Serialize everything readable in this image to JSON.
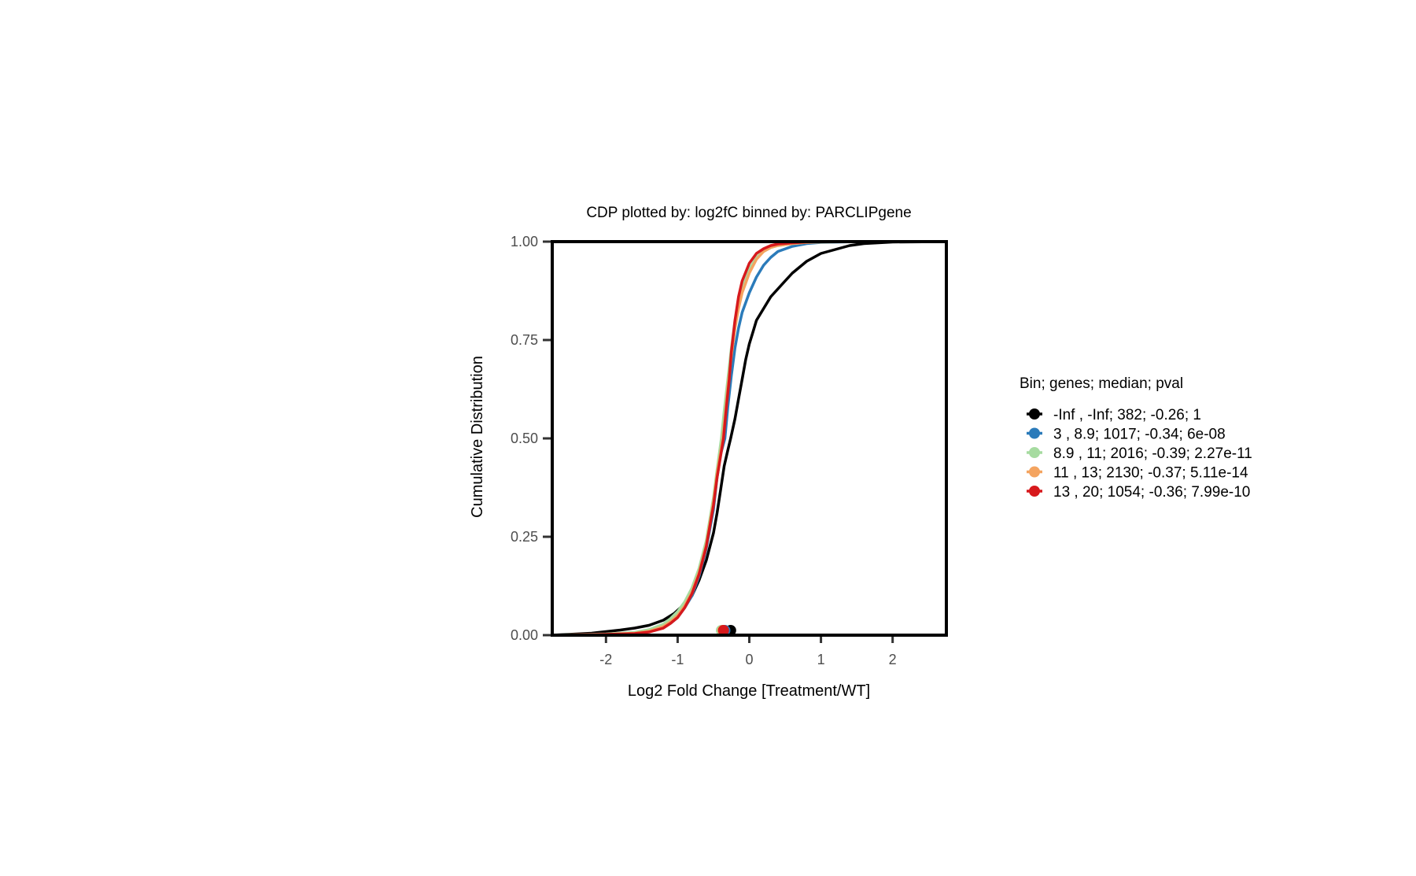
{
  "chart_data": {
    "type": "line",
    "title": "CDP plotted by: log2fC binned by: PARCLIPgene",
    "xlabel": "Log2 Fold Change [Treatment/WT]",
    "ylabel": "Cumulative Distribution",
    "xlim": [
      -2.75,
      2.75
    ],
    "ylim": [
      0,
      1
    ],
    "x_ticks": [
      "-2",
      "-1",
      "0",
      "1",
      "2"
    ],
    "x_tick_values": [
      -2,
      -1,
      0,
      1,
      2
    ],
    "y_ticks": [
      "0.00",
      "0.25",
      "0.50",
      "0.75",
      "1.00"
    ],
    "y_tick_values": [
      0,
      0.25,
      0.5,
      0.75,
      1
    ],
    "grid": false,
    "legend_position": "right",
    "legend_title": "Bin; genes; median; pval",
    "series": [
      {
        "name": "-Inf , -Inf; 382; -0.26; 1",
        "color": "#000000",
        "median": -0.26,
        "x": [
          -2.75,
          -2.2,
          -2.0,
          -1.8,
          -1.6,
          -1.4,
          -1.2,
          -1.05,
          -0.9,
          -0.8,
          -0.7,
          -0.6,
          -0.5,
          -0.45,
          -0.4,
          -0.35,
          -0.3,
          -0.26,
          -0.2,
          -0.15,
          -0.1,
          -0.05,
          0.0,
          0.05,
          0.1,
          0.2,
          0.3,
          0.4,
          0.5,
          0.6,
          0.7,
          0.8,
          0.9,
          1.0,
          1.2,
          1.4,
          1.6,
          2.0,
          2.75
        ],
        "y": [
          0.0,
          0.005,
          0.009,
          0.013,
          0.018,
          0.025,
          0.038,
          0.055,
          0.08,
          0.1,
          0.14,
          0.19,
          0.26,
          0.31,
          0.37,
          0.43,
          0.47,
          0.5,
          0.55,
          0.6,
          0.65,
          0.7,
          0.74,
          0.77,
          0.8,
          0.83,
          0.86,
          0.88,
          0.9,
          0.92,
          0.935,
          0.95,
          0.96,
          0.97,
          0.98,
          0.99,
          0.995,
          0.999,
          1.0
        ]
      },
      {
        "name": "3 , 8.9; 1017; -0.34; 6e-08",
        "color": "#2b7bba",
        "median": -0.34,
        "x": [
          -2.75,
          -2.0,
          -1.6,
          -1.4,
          -1.2,
          -1.1,
          -1.0,
          -0.9,
          -0.8,
          -0.7,
          -0.6,
          -0.5,
          -0.45,
          -0.4,
          -0.34,
          -0.3,
          -0.25,
          -0.2,
          -0.15,
          -0.1,
          0.0,
          0.1,
          0.2,
          0.3,
          0.4,
          0.6,
          0.8,
          1.0,
          1.5,
          2.75
        ],
        "y": [
          0.0,
          0.002,
          0.005,
          0.01,
          0.02,
          0.03,
          0.045,
          0.07,
          0.1,
          0.15,
          0.22,
          0.32,
          0.4,
          0.46,
          0.5,
          0.58,
          0.66,
          0.73,
          0.78,
          0.82,
          0.87,
          0.91,
          0.94,
          0.96,
          0.975,
          0.988,
          0.995,
          0.998,
          1.0,
          1.0
        ]
      },
      {
        "name": "8.9 , 11; 2016; -0.39; 2.27e-11",
        "color": "#a6dba0",
        "median": -0.39,
        "x": [
          -2.75,
          -2.0,
          -1.6,
          -1.4,
          -1.2,
          -1.1,
          -1.0,
          -0.9,
          -0.8,
          -0.7,
          -0.6,
          -0.5,
          -0.45,
          -0.39,
          -0.35,
          -0.3,
          -0.25,
          -0.2,
          -0.15,
          -0.1,
          0.0,
          0.1,
          0.2,
          0.3,
          0.4,
          0.6,
          0.8,
          1.0,
          1.5,
          2.75
        ],
        "y": [
          0.0,
          0.003,
          0.007,
          0.014,
          0.028,
          0.042,
          0.06,
          0.085,
          0.12,
          0.17,
          0.24,
          0.35,
          0.42,
          0.5,
          0.57,
          0.65,
          0.73,
          0.8,
          0.84,
          0.88,
          0.93,
          0.96,
          0.975,
          0.985,
          0.99,
          0.995,
          0.998,
          0.999,
          1.0,
          1.0
        ]
      },
      {
        "name": "11 , 13; 2130; -0.37; 5.11e-14",
        "color": "#f4a460",
        "median": -0.37,
        "x": [
          -2.75,
          -2.0,
          -1.6,
          -1.4,
          -1.2,
          -1.1,
          -1.0,
          -0.9,
          -0.8,
          -0.7,
          -0.6,
          -0.5,
          -0.45,
          -0.37,
          -0.33,
          -0.3,
          -0.25,
          -0.2,
          -0.15,
          -0.1,
          0.0,
          0.1,
          0.2,
          0.3,
          0.4,
          0.6,
          0.8,
          1.0,
          1.5,
          2.75
        ],
        "y": [
          0.0,
          0.002,
          0.005,
          0.01,
          0.022,
          0.034,
          0.05,
          0.075,
          0.11,
          0.16,
          0.23,
          0.34,
          0.41,
          0.5,
          0.57,
          0.63,
          0.71,
          0.78,
          0.83,
          0.87,
          0.92,
          0.955,
          0.975,
          0.985,
          0.99,
          0.995,
          0.998,
          0.999,
          1.0,
          1.0
        ]
      },
      {
        "name": "13 , 20; 1054; -0.36; 7.99e-10",
        "color": "#d7191c",
        "median": -0.36,
        "x": [
          -2.75,
          -2.0,
          -1.6,
          -1.4,
          -1.2,
          -1.1,
          -1.0,
          -0.9,
          -0.8,
          -0.7,
          -0.6,
          -0.5,
          -0.45,
          -0.36,
          -0.32,
          -0.28,
          -0.25,
          -0.2,
          -0.15,
          -0.1,
          0.0,
          0.1,
          0.2,
          0.3,
          0.4,
          0.6,
          0.8,
          1.0,
          1.5,
          2.75
        ],
        "y": [
          0.0,
          0.002,
          0.004,
          0.008,
          0.018,
          0.03,
          0.045,
          0.07,
          0.105,
          0.155,
          0.225,
          0.33,
          0.4,
          0.5,
          0.58,
          0.65,
          0.72,
          0.8,
          0.86,
          0.9,
          0.945,
          0.97,
          0.982,
          0.99,
          0.994,
          0.997,
          0.999,
          1.0,
          1.0,
          1.0
        ]
      }
    ]
  }
}
